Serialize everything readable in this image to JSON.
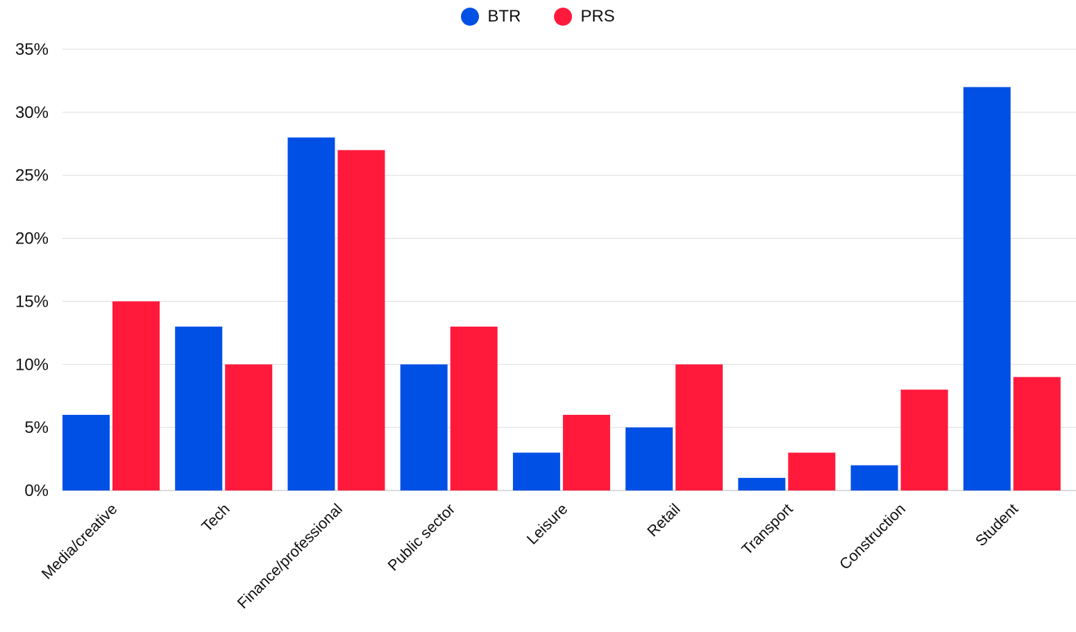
{
  "chart_data": {
    "type": "bar",
    "categories": [
      "Media/creative",
      "Tech",
      "Finance/professional",
      "Public sector",
      "Leisure",
      "Retail",
      "Transport",
      "Construction",
      "Student"
    ],
    "series": [
      {
        "name": "BTR",
        "color": "#0050e6",
        "values": [
          6,
          13,
          28,
          10,
          3,
          5,
          1,
          2,
          32
        ]
      },
      {
        "name": "PRS",
        "color": "#ff1a3c",
        "values": [
          15,
          10,
          27,
          13,
          6,
          10,
          3,
          8,
          9
        ]
      }
    ],
    "yticks": [
      "0%",
      "5%",
      "10%",
      "15%",
      "20%",
      "25%",
      "30%",
      "35%"
    ],
    "ylim": [
      0,
      35
    ],
    "grid": true,
    "legend_position": "top-center"
  }
}
